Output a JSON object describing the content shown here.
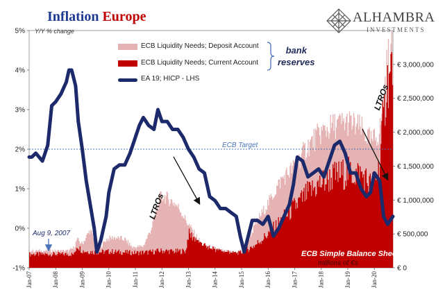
{
  "header": {
    "title_part1": "Inflation",
    "title_part2": "Europe",
    "logo_name": "ALHAMBRA",
    "logo_sub": "INVESTMENTS",
    "logo_icon": "diamond-lattice-icon"
  },
  "colors": {
    "deposit": "#e5b3b3",
    "current": "#c00000",
    "hicp": "#1c2a6b",
    "target": "#4a74b8",
    "title_blue": "#1f3a93",
    "title_red": "#c00000"
  },
  "legend": {
    "deposit_label": "ECB Liquidity Needs; Deposit Account",
    "current_label": "ECB Liquidity Needs; Current Account",
    "hicp_label": "EA 19; HICP - LHS",
    "bracket_label_1": "bank",
    "bracket_label_2": "reserves"
  },
  "chart_data": {
    "type": "area",
    "left_axis": {
      "unit_label": "Y/Y % change",
      "range": [
        -1,
        5
      ],
      "ticks": [
        "-1%",
        "0%",
        "1%",
        "2%",
        "3%",
        "4%",
        "5%"
      ]
    },
    "right_axis": {
      "unit_label": "millions of €s",
      "range": [
        0,
        3500000
      ],
      "ticks": [
        "€ 0",
        "€ 500,000",
        "€ 1,000,000",
        "€ 1,500,000",
        "€ 2,000,000",
        "€ 2,500,000",
        "€ 3,000,000"
      ]
    },
    "x_ticks": [
      "Jan-07",
      "Jan-08",
      "Jan-09",
      "Jan-10",
      "Jan-11",
      "Jan-12",
      "Jan-13",
      "Jan-14",
      "Jan-15",
      "Jan-16",
      "Jan-17",
      "Jan-18",
      "Jan-19",
      "Jan-20"
    ],
    "x_range": [
      2007.0,
      2020.7
    ],
    "reference_line": {
      "label": "ECB Target",
      "value": 2
    },
    "series": [
      {
        "name": "ECB Liquidity Needs; Deposit Account",
        "axis": "right",
        "x": [
          2007.0,
          2008.5,
          2008.7,
          2008.8,
          2009.0,
          2009.3,
          2009.6,
          2009.9,
          2010.2,
          2010.6,
          2010.9,
          2011.3,
          2011.6,
          2011.8,
          2011.95,
          2012.1,
          2012.3,
          2012.5,
          2012.7,
          2012.9,
          2013.2,
          2013.5,
          2013.9,
          2014.3,
          2014.7,
          2015.0,
          2015.3,
          2015.6,
          2016.0,
          2016.5,
          2017.0,
          2017.5,
          2018.0,
          2018.5,
          2019.0,
          2019.5,
          2019.9,
          2020.2,
          2020.35,
          2020.5,
          2020.7
        ],
        "values": [
          250000,
          250000,
          300000,
          420000,
          350000,
          560000,
          250000,
          420000,
          450000,
          420000,
          300000,
          320000,
          580000,
          850000,
          1050000,
          1050000,
          1000000,
          950000,
          850000,
          700000,
          520000,
          350000,
          300000,
          250000,
          230000,
          250000,
          450000,
          700000,
          950000,
          1300000,
          1500000,
          1800000,
          2000000,
          2100000,
          2150000,
          2050000,
          1850000,
          2000000,
          2500000,
          3100000,
          3250000
        ]
      },
      {
        "name": "ECB Liquidity Needs; Current Account",
        "axis": "right",
        "x": [
          2007.0,
          2008.7,
          2008.8,
          2009.0,
          2009.5,
          2010.0,
          2010.5,
          2011.0,
          2011.5,
          2011.95,
          2012.1,
          2012.5,
          2012.9,
          2013.0,
          2013.4,
          2013.8,
          2014.3,
          2014.8,
          2015.0,
          2015.5,
          2016.0,
          2016.5,
          2017.0,
          2017.5,
          2018.0,
          2018.5,
          2019.0,
          2019.5,
          2019.9,
          2020.2,
          2020.35,
          2020.5,
          2020.7
        ],
        "values": [
          200000,
          200000,
          330000,
          250000,
          230000,
          240000,
          230000,
          220000,
          230000,
          250000,
          250000,
          240000,
          250000,
          500000,
          400000,
          300000,
          250000,
          230000,
          230000,
          330000,
          500000,
          700000,
          900000,
          1100000,
          1250000,
          1350000,
          1400000,
          1380000,
          1200000,
          1500000,
          2300000,
          2800000,
          3000000
        ]
      },
      {
        "name": "EA 19; HICP - LHS",
        "axis": "left",
        "x": [
          2007.0,
          2007.1,
          2007.25,
          2007.5,
          2007.7,
          2007.85,
          2008.0,
          2008.2,
          2008.4,
          2008.5,
          2008.6,
          2008.75,
          2008.85,
          2009.0,
          2009.15,
          2009.3,
          2009.45,
          2009.55,
          2009.7,
          2009.9,
          2010.0,
          2010.2,
          2010.4,
          2010.6,
          2010.8,
          2011.0,
          2011.15,
          2011.3,
          2011.5,
          2011.7,
          2011.85,
          2012.0,
          2012.2,
          2012.4,
          2012.6,
          2012.8,
          2013.0,
          2013.2,
          2013.4,
          2013.6,
          2013.8,
          2014.0,
          2014.2,
          2014.4,
          2014.6,
          2014.8,
          2014.95,
          2015.1,
          2015.25,
          2015.4,
          2015.6,
          2015.8,
          2016.0,
          2016.2,
          2016.4,
          2016.6,
          2016.8,
          2016.95,
          2017.1,
          2017.3,
          2017.5,
          2017.7,
          2017.9,
          2018.1,
          2018.3,
          2018.5,
          2018.7,
          2018.9,
          2019.1,
          2019.3,
          2019.5,
          2019.7,
          2019.85,
          2020.0,
          2020.2,
          2020.35,
          2020.5,
          2020.7
        ],
        "values": [
          1.8,
          1.8,
          1.9,
          1.7,
          2.1,
          3.1,
          3.2,
          3.4,
          3.7,
          4.0,
          4.0,
          3.6,
          2.7,
          2.0,
          1.2,
          0.6,
          0.0,
          -0.6,
          -0.3,
          0.3,
          0.9,
          1.5,
          1.6,
          1.6,
          1.9,
          2.3,
          2.6,
          2.8,
          2.6,
          2.5,
          3.0,
          2.7,
          2.7,
          2.5,
          2.5,
          2.3,
          2.0,
          1.8,
          1.5,
          1.4,
          0.8,
          0.7,
          0.5,
          0.5,
          0.4,
          0.3,
          -0.2,
          -0.6,
          -0.2,
          0.2,
          0.2,
          0.1,
          0.3,
          -0.2,
          0.0,
          0.3,
          0.6,
          1.1,
          1.8,
          1.7,
          1.3,
          1.4,
          1.5,
          1.3,
          1.7,
          2.1,
          2.2,
          1.9,
          1.4,
          1.4,
          1.0,
          0.8,
          0.9,
          1.4,
          1.2,
          0.3,
          0.1,
          0.3
        ]
      }
    ]
  },
  "annotations": {
    "aug9": "Aug 9, 2007",
    "ltros_1": "LTROs",
    "ltros_2": "LTROs",
    "balance_title": "ECB Simple Balance Sheet",
    "balance_unit": "millions of €s"
  }
}
